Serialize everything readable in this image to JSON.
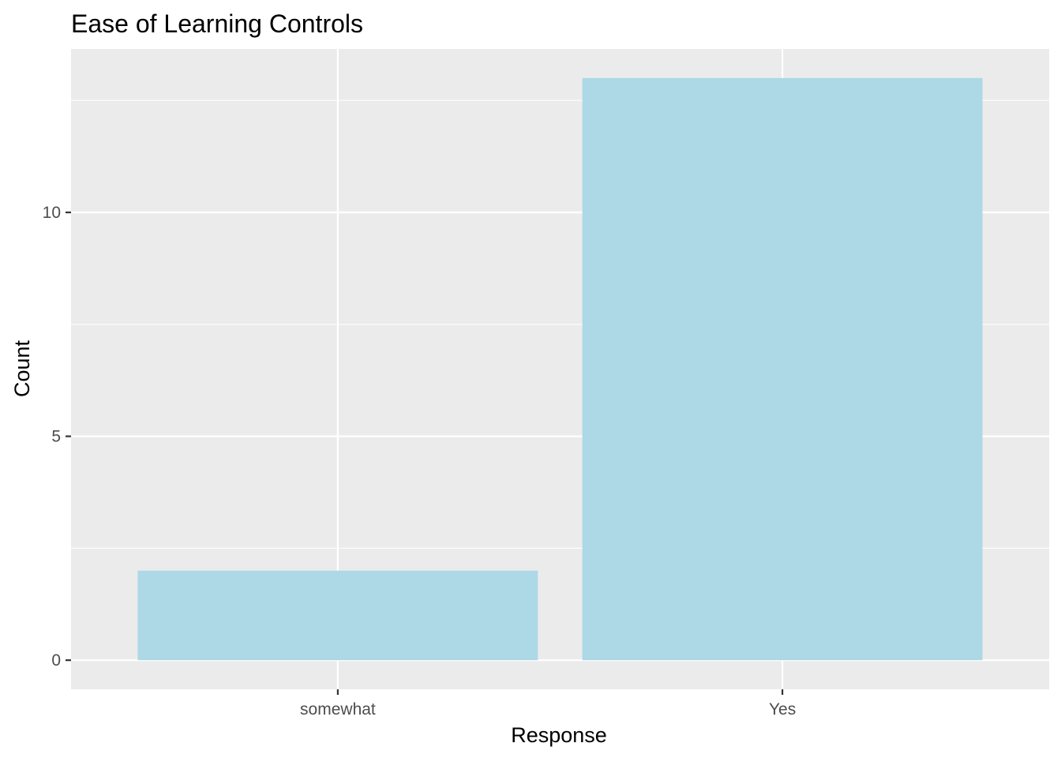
{
  "chart_data": {
    "type": "bar",
    "title": "Ease of Learning Controls",
    "xlabel": "Response",
    "ylabel": "Count",
    "categories": [
      "somewhat",
      "Yes"
    ],
    "values": [
      2,
      13
    ],
    "ylim": [
      -0.65,
      13.65
    ],
    "yticks": [
      0,
      5,
      10
    ],
    "ytick_labels": [
      "0",
      "5",
      "10"
    ],
    "grid": true,
    "legend": "none",
    "colors": {
      "bar": "#ADD8E6",
      "panel": "#EBEBEB",
      "grid": "#FFFFFF",
      "tick_text": "#4D4D4D",
      "axis_text": "#000000",
      "tick_mark": "#333333"
    }
  }
}
